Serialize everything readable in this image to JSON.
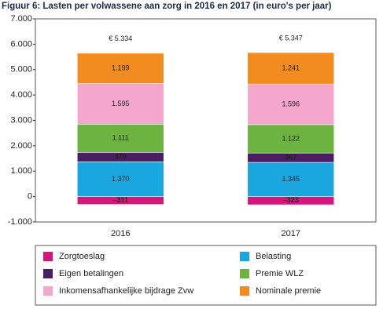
{
  "chart_data": {
    "type": "stacked-bar",
    "title": "Figuur 6: Lasten per volwassene aan zorg in 2016 en 2017 (in euro's per jaar)",
    "categories": [
      "2016",
      "2017"
    ],
    "series": [
      {
        "name": "Zorgtoeslag",
        "color": "#d6157d",
        "values": [
          -311,
          -323
        ],
        "value_labels": [
          "–311",
          "–323"
        ]
      },
      {
        "name": "Belasting",
        "color": "#1aa7e0",
        "values": [
          1370,
          1345
        ],
        "value_labels": [
          "1.370",
          "1.345"
        ]
      },
      {
        "name": "Eigen betalingen",
        "color": "#4b1e64",
        "values": [
          370,
          367
        ]
      },
      {
        "name": "Premie WLZ",
        "color": "#6db33f",
        "values": [
          1111,
          1122
        ],
        "value_labels": [
          "1.111",
          "1.122"
        ]
      },
      {
        "name": "Inkomensafhankelijke bijdrage Zvw",
        "color": "#f4a6cd",
        "values": [
          1595,
          1596
        ],
        "value_labels": [
          "1.595",
          "1.596"
        ]
      },
      {
        "name": "Nominale premie",
        "color": "#f28c1e",
        "values": [
          1199,
          1241
        ],
        "value_labels": [
          "1.199",
          "1.241"
        ]
      }
    ],
    "totals": {
      "values": [
        5334,
        5347
      ],
      "value_labels": [
        "€ 5.334",
        "€ 5.347"
      ]
    },
    "ylim": [
      -1000,
      7000
    ],
    "yticks": [
      {
        "value": -1000,
        "label": "-1.000"
      },
      0,
      {
        "value": 1000,
        "label": "1.000"
      },
      {
        "value": 2000,
        "label": "2.000"
      },
      {
        "value": 3000,
        "label": "3.000"
      },
      {
        "value": 4000,
        "label": "4.000"
      },
      {
        "value": 5000,
        "label": "5.000"
      },
      {
        "value": 6000,
        "label": "6.000"
      },
      {
        "value": 7000,
        "label": "7.000"
      }
    ],
    "grid": false
  }
}
